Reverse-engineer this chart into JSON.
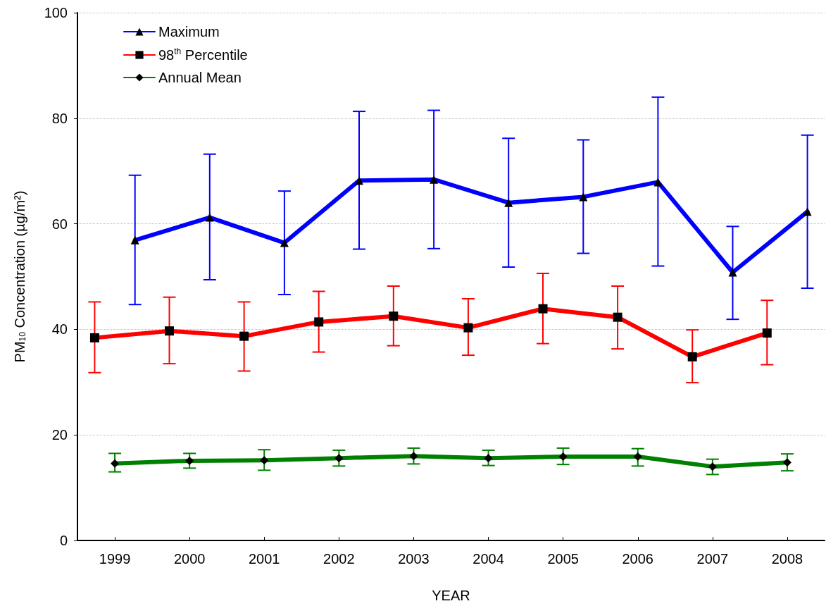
{
  "chart_data": {
    "type": "line",
    "xlabel": "YEAR",
    "ylabel": "PM$_{10}$ Concentration (µg/m²)",
    "xlim": [
      1998.5,
      2008.5
    ],
    "xticks": [
      1999,
      2000,
      2001,
      2002,
      2003,
      2004,
      2005,
      2006,
      2007,
      2008
    ],
    "ylim": [
      0,
      100
    ],
    "yticks": [
      0,
      20,
      40,
      60,
      80,
      100
    ],
    "grid": "y",
    "legend": "top left",
    "line_style": "solid",
    "series": [
      {
        "name": "Maximum",
        "color": "#0000ff",
        "marker": "triangle",
        "x": [
          1999.27,
          2000.27,
          2001.27,
          2002.27,
          2003.27,
          2004.27,
          2005.27,
          2006.27,
          2007.27,
          2008.27
        ],
        "values": [
          56.9,
          61.2,
          56.4,
          68.2,
          68.4,
          64.0,
          65.1,
          67.9,
          50.8,
          62.3
        ],
        "errors": [
          [
            44.7,
            69.2
          ],
          [
            49.4,
            73.2
          ],
          [
            46.6,
            66.2
          ],
          [
            55.2,
            81.3
          ],
          [
            55.3,
            81.5
          ],
          [
            51.8,
            76.2
          ],
          [
            54.4,
            75.9
          ],
          [
            52.0,
            84.0
          ],
          [
            41.9,
            59.5
          ],
          [
            47.8,
            76.8
          ]
        ]
      },
      {
        "name": "98$^{th}$ Percentile",
        "color": "#ff0000",
        "marker": "square",
        "x": [
          1998.73,
          1999.73,
          2000.73,
          2001.73,
          2002.73,
          2003.73,
          2004.73,
          2005.73,
          2006.73,
          2007.73
        ],
        "values": [
          38.4,
          39.7,
          38.7,
          41.4,
          42.5,
          40.3,
          43.9,
          42.3,
          34.8,
          39.3
        ],
        "errors": [
          [
            31.8,
            45.2
          ],
          [
            33.5,
            46.1
          ],
          [
            32.1,
            45.2
          ],
          [
            35.7,
            47.2
          ],
          [
            36.9,
            48.2
          ],
          [
            35.1,
            45.8
          ],
          [
            37.3,
            50.6
          ],
          [
            36.3,
            48.2
          ],
          [
            29.9,
            39.9
          ],
          [
            33.3,
            45.5
          ]
        ]
      },
      {
        "name": "Annual Mean",
        "color": "#008000",
        "marker": "diamond",
        "x": [
          1999,
          2000,
          2001,
          2002,
          2003,
          2004,
          2005,
          2006,
          2007,
          2008
        ],
        "values": [
          14.6,
          15.1,
          15.2,
          15.6,
          16.0,
          15.6,
          15.9,
          15.9,
          14.0,
          14.8
        ],
        "errors": [
          [
            13.0,
            16.5
          ],
          [
            13.7,
            16.5
          ],
          [
            13.3,
            17.2
          ],
          [
            14.1,
            17.1
          ],
          [
            14.5,
            17.5
          ],
          [
            14.2,
            17.1
          ],
          [
            14.4,
            17.5
          ],
          [
            14.1,
            17.4
          ],
          [
            12.5,
            15.4
          ],
          [
            13.2,
            16.4
          ]
        ]
      }
    ]
  }
}
